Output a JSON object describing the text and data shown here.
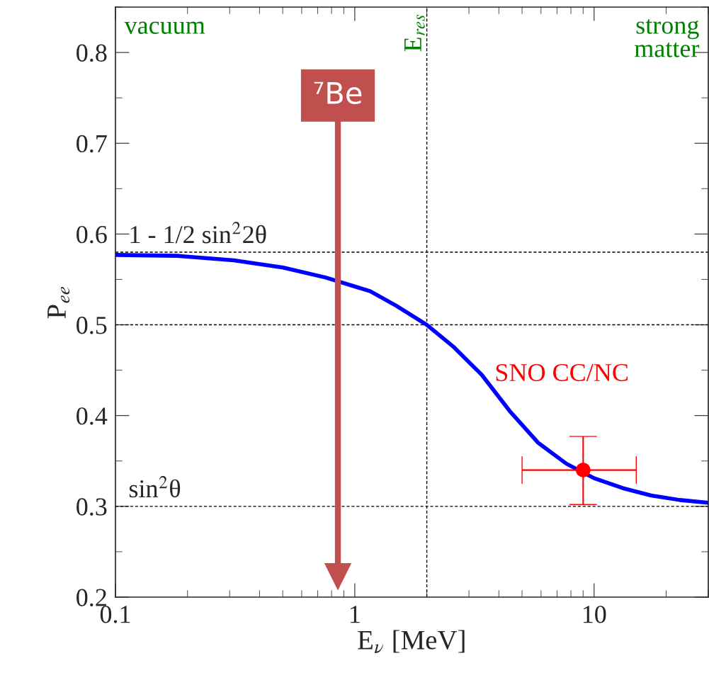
{
  "chart_data": {
    "type": "line",
    "xlabel": "E$_{ν}$ [MeV]",
    "ylabel": "P$_{ee}$",
    "log": "x",
    "xlim": [
      0.1,
      30
    ],
    "xticks": [
      0.1,
      1,
      10
    ],
    "ylim": [
      0.2,
      0.85
    ],
    "yticks": [
      0.2,
      0.3,
      0.4,
      0.5,
      0.6,
      0.7,
      0.8
    ],
    "grid": false,
    "legend": false,
    "series": [
      {
        "color": "#0000ff",
        "x": [
          0.1,
          0.181,
          0.312,
          0.502,
          0.757,
          1.16,
          1.49,
          2.0,
          2.58,
          3.39,
          4.44,
          5.84,
          7.66,
          10.0,
          13.2,
          17.3,
          22.8,
          30
        ],
        "values": [
          0.577,
          0.576,
          0.571,
          0.563,
          0.552,
          0.537,
          0.521,
          0.5,
          0.476,
          0.445,
          0.405,
          0.37,
          0.347,
          0.331,
          0.32,
          0.312,
          0.307,
          0.304
        ]
      },
      {
        "type": "scatter",
        "name": "SNO CC/NC",
        "color": "#ff0000",
        "marker": "circle",
        "x": [
          9
        ],
        "values": [
          0.34
        ],
        "errors": [
          [
            0.302,
            0.377
          ]
        ],
        "xerrors": [
          [
            5,
            15
          ]
        ]
      }
    ],
    "ref_lines": [
      {
        "axis": "y",
        "value": 0.58,
        "label": "1 - 1/2 sin$^{2}$2θ",
        "line_style": "dashed",
        "color": "#000000"
      },
      {
        "axis": "y",
        "value": 0.5,
        "label": null,
        "line_style": "dashed",
        "color": "#000000"
      },
      {
        "axis": "y",
        "value": 0.3,
        "label": "sin$^{2}$θ",
        "line_style": "dashed",
        "color": "#000000"
      },
      {
        "axis": "x",
        "value": 2,
        "label": "E$_{res}$",
        "line_style": "dashed",
        "color": "#000000"
      },
      {
        "axis": "x",
        "value": 0.85,
        "label": "⁷Be",
        "line_style": "solid",
        "color": "#c0504d"
      }
    ],
    "annotations": [
      "vacuum",
      "strong\nmatter"
    ]
  }
}
